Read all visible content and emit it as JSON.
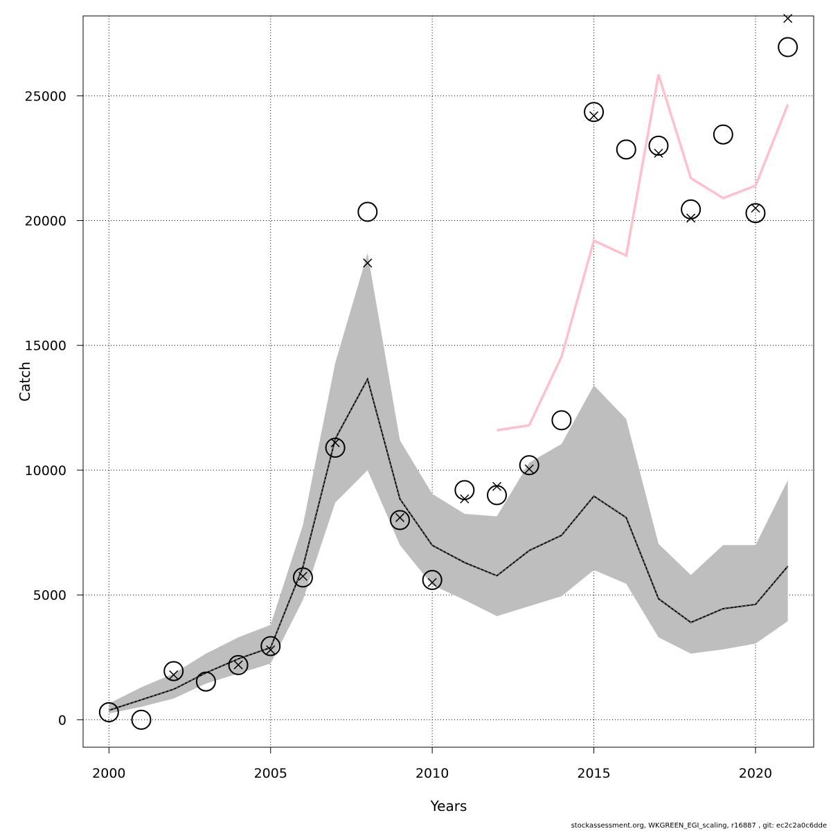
{
  "chart_data": {
    "type": "line",
    "xlabel": "Years",
    "ylabel": "Catch",
    "xlim": [
      1999.2,
      2021.8
    ],
    "ylim": [
      -1100,
      28200
    ],
    "x_ticks": [
      2000,
      2005,
      2010,
      2015,
      2020
    ],
    "y_ticks": [
      0,
      5000,
      10000,
      15000,
      20000,
      25000
    ],
    "grid": true,
    "colors": {
      "band": "#bebebe",
      "line": "#000000",
      "pink": "#ffc0cb"
    },
    "years": [
      2000,
      2001,
      2002,
      2003,
      2004,
      2005,
      2006,
      2007,
      2008,
      2009,
      2010,
      2011,
      2012,
      2013,
      2014,
      2015,
      2016,
      2017,
      2018,
      2019,
      2020,
      2021
    ],
    "series": [
      {
        "kind": "band",
        "lower": [
          250,
          520,
          850,
          1450,
          1850,
          2250,
          4800,
          8700,
          10000,
          7000,
          5400,
          4800,
          4150,
          4550,
          4950,
          6000,
          5450,
          3300,
          2650,
          2820,
          3050,
          3950
        ],
        "upper": [
          650,
          1300,
          1850,
          2650,
          3300,
          3800,
          7800,
          14300,
          18700,
          11200,
          9050,
          8250,
          8150,
          10300,
          11050,
          13400,
          12050,
          7050,
          5800,
          7000,
          7000,
          9600
        ]
      },
      {
        "kind": "line",
        "style": "solid",
        "values": [
          380,
          800,
          1220,
          1880,
          2440,
          2890,
          6120,
          11250,
          13650,
          8850,
          6990,
          6300,
          5770,
          6780,
          7390,
          8960,
          8100,
          4850,
          3900,
          4450,
          4620,
          6150
        ]
      },
      {
        "kind": "line",
        "style": "dashed",
        "values": [
          380,
          800,
          1220,
          1880,
          2440,
          2890,
          6120,
          11250,
          13650,
          8850,
          6990,
          6300,
          5770,
          6780,
          7390,
          8960,
          8100,
          4850,
          3900,
          4450,
          4620,
          6150
        ]
      },
      {
        "kind": "line",
        "style": "pink",
        "years": [
          2012,
          2013,
          2014,
          2015,
          2016,
          2017,
          2018,
          2019,
          2020,
          2021
        ],
        "values": [
          11600,
          11800,
          14550,
          19200,
          18600,
          25850,
          21700,
          20900,
          21400,
          24650
        ]
      },
      {
        "kind": "points",
        "marker": "circle",
        "values": [
          300,
          0,
          1950,
          1530,
          2190,
          2950,
          5700,
          10900,
          20350,
          8000,
          5600,
          9200,
          9000,
          10200,
          12000,
          24350,
          22850,
          23000,
          20450,
          23450,
          20300,
          26950
        ]
      },
      {
        "kind": "points",
        "marker": "cross",
        "years": [
          2002,
          2004,
          2005,
          2006,
          2007,
          2008,
          2009,
          2010,
          2011,
          2012,
          2013,
          2015,
          2017,
          2018,
          2020,
          2021
        ],
        "values": [
          1800,
          2200,
          2800,
          5750,
          11100,
          18300,
          8100,
          5500,
          8850,
          9350,
          10050,
          24200,
          22700,
          20100,
          20500,
          28100
        ]
      }
    ]
  },
  "footer": "stockassessment.org, WKGREEN_EGI_scaling, r16887 , git: ec2c2a0c6dde"
}
